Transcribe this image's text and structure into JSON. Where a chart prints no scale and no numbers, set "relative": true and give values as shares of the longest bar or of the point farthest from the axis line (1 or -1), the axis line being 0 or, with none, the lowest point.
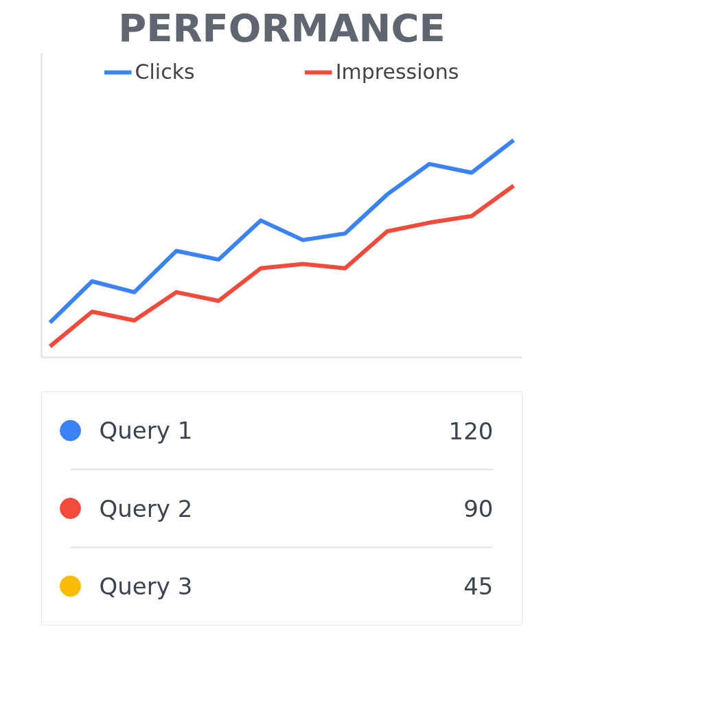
{
  "chart_data": [
    {
      "type": "line",
      "title": "PERFORMANCE",
      "relative": true,
      "legend": "top",
      "grid": false,
      "marker": "none",
      "line_style": "solid",
      "categories": [
        null,
        null,
        null,
        null,
        null,
        null,
        null,
        null,
        null,
        null,
        null,
        null
      ],
      "series": [
        {
          "name": "Clicks",
          "color": "#3b82f6",
          "values": [
            0.16,
            0.35,
            0.3,
            0.49,
            0.45,
            0.63,
            0.54,
            0.57,
            0.75,
            0.89,
            0.85,
            1.0
          ]
        },
        {
          "name": "Impressions",
          "color": "#f44a3b",
          "values": [
            0.05,
            0.21,
            0.17,
            0.3,
            0.26,
            0.41,
            0.43,
            0.41,
            0.58,
            0.62,
            0.65,
            0.79
          ]
        }
      ]
    },
    {
      "type": "other",
      "categories": [
        "Query 1",
        "Query 2",
        "Query 3"
      ],
      "values": [
        120,
        90,
        45
      ],
      "colors": [
        "#3b82f6",
        "#f44a3b",
        "#fbbc05"
      ],
      "data_labels": true
    }
  ]
}
